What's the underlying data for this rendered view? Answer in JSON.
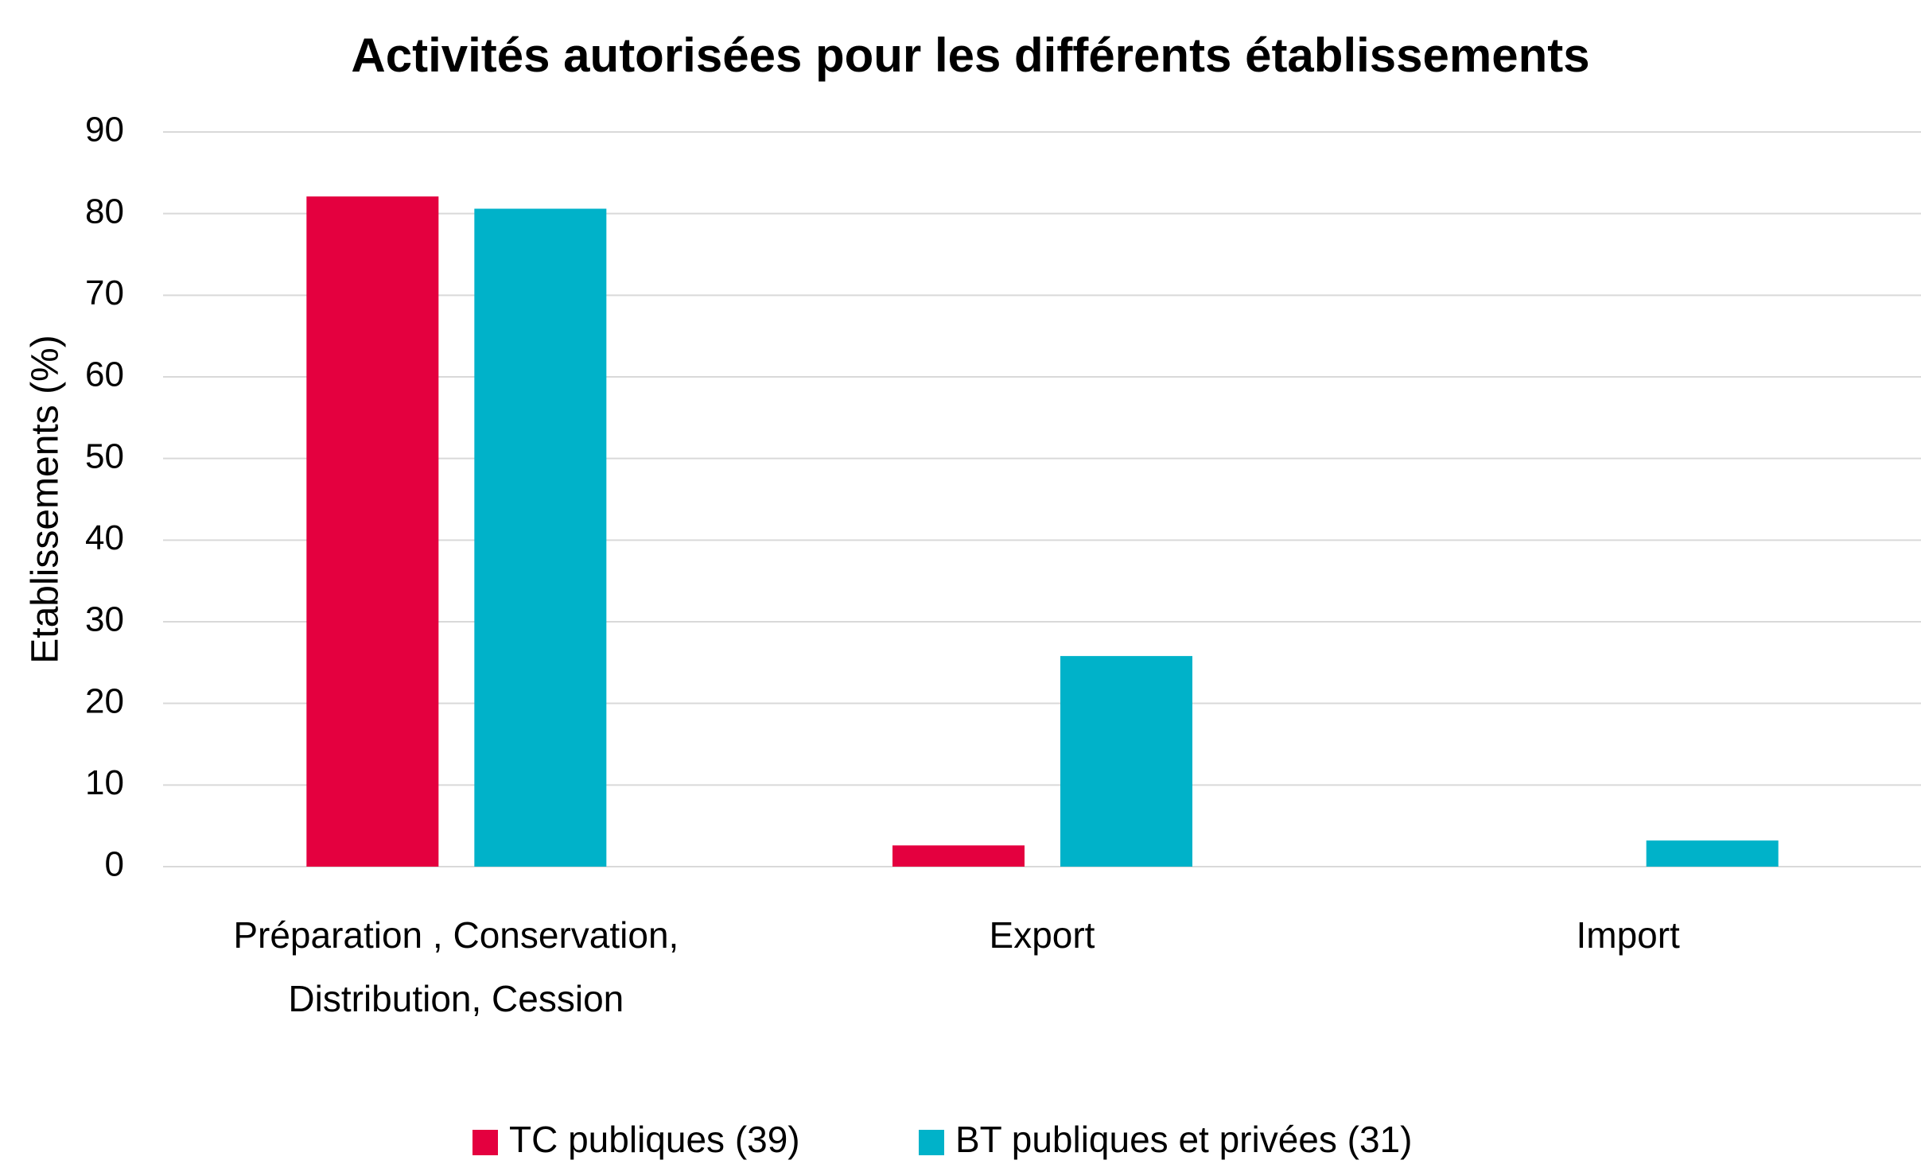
{
  "chart_data": {
    "type": "bar",
    "title": "Activités autorisées pour les différents établissements",
    "y_label": "Etablissements (%)",
    "categories": [
      "Préparation , Conservation, Distribution, Cession",
      "Export",
      "Import"
    ],
    "series": [
      {
        "name": "TC publiques (39)",
        "color": "#e4003f",
        "values": [
          82.1,
          2.6,
          0
        ]
      },
      {
        "name": "BT publiques et privées (31)",
        "color": "#00b2c9",
        "values": [
          80.6,
          25.8,
          3.2
        ]
      }
    ],
    "ylim": [
      0,
      90
    ],
    "yticks": [
      0,
      10,
      20,
      30,
      40,
      50,
      60,
      70,
      80,
      90
    ],
    "grid": true,
    "legend": "bottom"
  }
}
